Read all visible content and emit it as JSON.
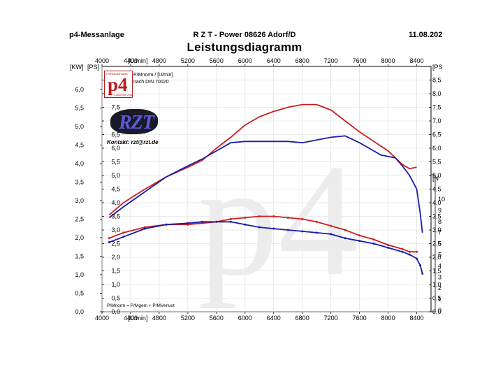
{
  "header": {
    "left": "p4-Messanlage",
    "center": "R Z T - Power   08626 Adorf/D",
    "right": "11.08.202"
  },
  "title": "Leistungsdiagramm",
  "logo": {
    "text": "p4",
    "subtext": "Prüfstandanlagen",
    "subtext2": "Copyright Voltz"
  },
  "legend": {
    "line1": "P/Mnorm / [U/min]",
    "line2": "nach DIN 70020"
  },
  "brand": {
    "text": "RZT",
    "contact": "Kontakt: rzt@rzt.de"
  },
  "footnote": "P/Mnorm = P/Mgem + P/MVerlust",
  "watermark": "p4",
  "colors": {
    "red": "#c82020",
    "blue": "#1a1ab0"
  },
  "chart_data": {
    "type": "line",
    "title": "Leistungsdiagramm",
    "x_unit_label": "[U/min]",
    "xlim": [
      4000,
      8600
    ],
    "x_ticks": [
      "4000",
      "4400",
      "4800",
      "5200",
      "5600",
      "6000",
      "6400",
      "6800",
      "7200",
      "7600",
      "8000",
      "8400"
    ],
    "y_left_kw": {
      "label": "[KW]",
      "ticks": [
        "0,0",
        "0,5",
        "1,0",
        "1,5",
        "2,0",
        "2,5",
        "3,0",
        "3,5",
        "4,0",
        "4,5",
        "5,0",
        "5,5",
        "6,0"
      ]
    },
    "y_left_ps": {
      "label": "[PS]",
      "ticks": [
        "0,0",
        "0,5",
        "1,0",
        "1,5",
        "2,0",
        "2,5",
        "3,0",
        "3,5",
        "4,0",
        "4,5",
        "5,0",
        "5,5",
        "6,0",
        "6,5",
        "7,0",
        "7,5",
        "8,0",
        "8,5"
      ]
    },
    "y_right_ps": {
      "label": "[PS",
      "ticks": [
        "0,0",
        "0,5",
        "1,0",
        "1,5",
        "2,0",
        "2,5",
        "3,0",
        "3,5",
        "4,0",
        "4,5",
        "5,0",
        "5,5",
        "6,0",
        "6,5",
        "7,0",
        "7,5",
        "8,0",
        "8,5"
      ]
    },
    "y_right_nm": {
      "label": "[N",
      "ticks": [
        "0",
        "1",
        "2",
        "3",
        "4",
        "5",
        "6",
        "7",
        "8",
        "9",
        "10"
      ]
    },
    "ylim_ps": [
      0,
      9
    ],
    "series": [
      {
        "color": "#c82020",
        "kind": "power",
        "x": [
          4100,
          4300,
          4600,
          4900,
          5200,
          5400,
          5600,
          5800,
          6000,
          6200,
          6400,
          6600,
          6800,
          7000,
          7200,
          7400,
          7600,
          7800,
          8000,
          8200,
          8300,
          8400
        ],
        "y": [
          3.55,
          4.0,
          4.5,
          4.95,
          5.3,
          5.55,
          6.0,
          6.4,
          6.85,
          7.15,
          7.35,
          7.5,
          7.6,
          7.6,
          7.4,
          7.0,
          6.6,
          6.25,
          5.9,
          5.4,
          5.25,
          5.3
        ]
      },
      {
        "color": "#1a1ab0",
        "kind": "power",
        "x": [
          4100,
          4300,
          4600,
          4900,
          5200,
          5400,
          5600,
          5800,
          6000,
          6200,
          6400,
          6600,
          6800,
          7000,
          7200,
          7400,
          7600,
          7800,
          7900,
          8100,
          8200,
          8300,
          8400,
          8450,
          8480
        ],
        "y": [
          3.45,
          3.85,
          4.4,
          4.95,
          5.35,
          5.6,
          5.9,
          6.2,
          6.25,
          6.25,
          6.25,
          6.25,
          6.2,
          6.3,
          6.4,
          6.45,
          6.2,
          5.9,
          5.75,
          5.65,
          5.35,
          5.0,
          4.5,
          3.6,
          2.9
        ]
      },
      {
        "color": "#c82020",
        "kind": "torque",
        "x": [
          4100,
          4300,
          4600,
          4900,
          5200,
          5400,
          5600,
          5800,
          6000,
          6200,
          6400,
          6600,
          6800,
          7000,
          7200,
          7400,
          7600,
          7800,
          8000,
          8200,
          8300,
          8400
        ],
        "y": [
          2.7,
          2.9,
          3.1,
          3.2,
          3.2,
          3.25,
          3.3,
          3.4,
          3.45,
          3.5,
          3.5,
          3.45,
          3.4,
          3.3,
          3.15,
          3.0,
          2.8,
          2.65,
          2.45,
          2.3,
          2.2,
          2.2
        ]
      },
      {
        "color": "#1a1ab0",
        "kind": "torque",
        "x": [
          4100,
          4300,
          4600,
          4900,
          5200,
          5400,
          5600,
          5800,
          6000,
          6200,
          6400,
          6600,
          6800,
          7000,
          7200,
          7400,
          7600,
          7800,
          8000,
          8200,
          8300,
          8400,
          8450,
          8480
        ],
        "y": [
          2.55,
          2.75,
          3.05,
          3.2,
          3.25,
          3.3,
          3.3,
          3.3,
          3.2,
          3.1,
          3.05,
          3.0,
          2.95,
          2.9,
          2.85,
          2.7,
          2.6,
          2.5,
          2.35,
          2.2,
          2.1,
          1.95,
          1.7,
          1.4
        ]
      }
    ]
  }
}
